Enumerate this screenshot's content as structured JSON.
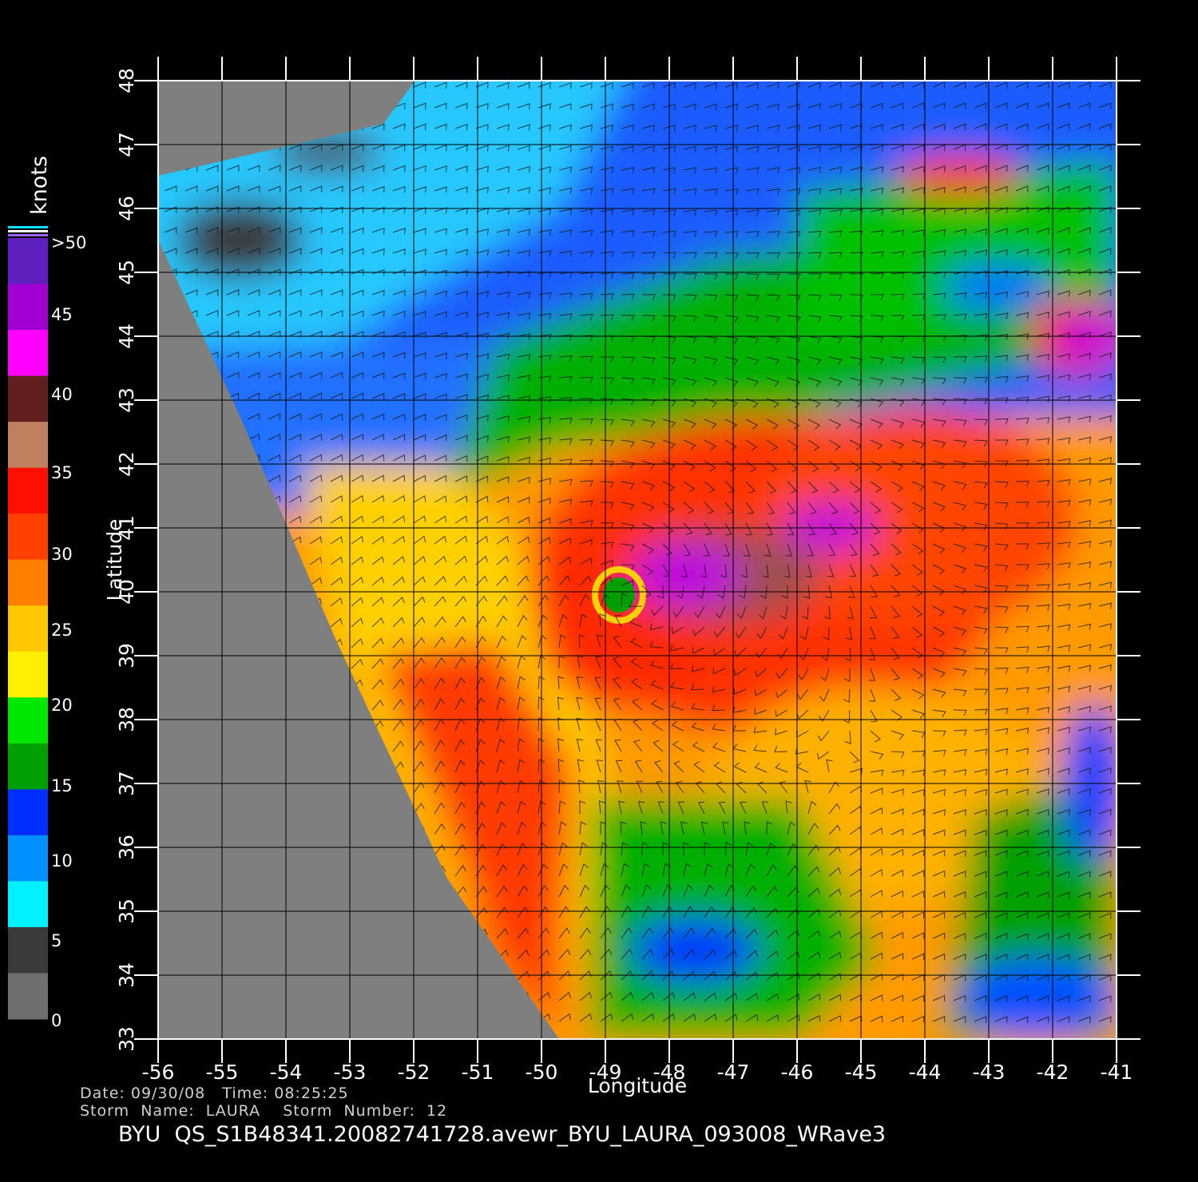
{
  "figure": {
    "xlabel": "Longitude",
    "ylabel": "Latitude",
    "lon_range": [
      -56,
      -41
    ],
    "lat_range": [
      33,
      48
    ],
    "lon_ticks": [
      "-56",
      "-55",
      "-54",
      "-53",
      "-52",
      "-51",
      "-50",
      "-49",
      "-48",
      "-47",
      "-46",
      "-45",
      "-44",
      "-43",
      "-42",
      "-41"
    ],
    "lat_ticks": [
      "33",
      "34",
      "35",
      "36",
      "37",
      "38",
      "39",
      "40",
      "41",
      "42",
      "43",
      "44",
      "45",
      "46",
      "47",
      "48"
    ]
  },
  "colorbar": {
    "unit": "knots",
    "labels": [
      "0",
      "5",
      "10",
      "15",
      "20",
      "25",
      "30",
      "35",
      "40",
      "45",
      ">50"
    ],
    "colors": [
      "#6e6e6e",
      "#3a3a3a",
      "#00f0ff",
      "#0090ff",
      "#0030ff",
      "#00a000",
      "#00e800",
      "#fff000",
      "#ffc800",
      "#ff8000",
      "#ff4000",
      "#ff1000",
      "#c08060",
      "#602020",
      "#ff00ff",
      "#a000d0",
      "#6020c0"
    ]
  },
  "storm": {
    "center_lon": -48.5,
    "center_lat": 39.9,
    "date_line": "Date: 09/30/08   Time: 08:25:25",
    "name_line": "Storm  Name:  LAURA    Storm  Number:  12"
  },
  "filename": "BYU  QS_S1B48341.20082741728.avewr_BYU_LAURA_093008_WRave3"
}
